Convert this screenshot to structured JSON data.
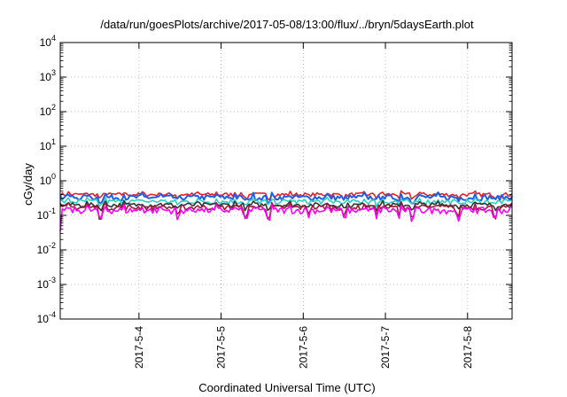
{
  "chart_data": {
    "type": "line",
    "title": "/data/run/goesPlots/archive/2017-05-08/13:00/flux/../bryn/5daysEarth.plot",
    "xlabel": "Coordinated Universal Time (UTC)",
    "ylabel": "cGy/day",
    "yscale": "log",
    "ylim": [
      0.0001,
      10000
    ],
    "xlim": [
      "2017-05-03T01:00",
      "2017-05-08T13:00"
    ],
    "grid": true,
    "y_ticks": [
      {
        "base": "10",
        "exp": "-4"
      },
      {
        "base": "10",
        "exp": "-3"
      },
      {
        "base": "10",
        "exp": "-2"
      },
      {
        "base": "10",
        "exp": "-1"
      },
      {
        "base": "10",
        "exp": "0"
      },
      {
        "base": "10",
        "exp": "1"
      },
      {
        "base": "10",
        "exp": "2"
      },
      {
        "base": "10",
        "exp": "3"
      },
      {
        "base": "10",
        "exp": "4"
      }
    ],
    "x_ticks": [
      {
        "label": "2017-5-4",
        "date": "2017-05-04T00:00"
      },
      {
        "label": "2017-5-5",
        "date": "2017-05-05T00:00"
      },
      {
        "label": "2017-5-6",
        "date": "2017-05-06T00:00"
      },
      {
        "label": "2017-5-7",
        "date": "2017-05-07T00:00"
      },
      {
        "label": "2017-5-8",
        "date": "2017-05-08T00:00"
      }
    ],
    "series": [
      {
        "color": "#e8202a",
        "level": 0.4,
        "spread": 0.05
      },
      {
        "color": "#1f5fe6",
        "level": 0.33,
        "spread": 0.06
      },
      {
        "color": "#2ad0c0",
        "level": 0.25,
        "spread": 0.04
      },
      {
        "color": "#333333",
        "level": 0.2,
        "spread": 0.03
      },
      {
        "color": "#9a1a3a",
        "level": 0.17,
        "spread": 0.03
      },
      {
        "color": "#ff00ff",
        "level": 0.14,
        "spread": 0.03
      }
    ]
  }
}
